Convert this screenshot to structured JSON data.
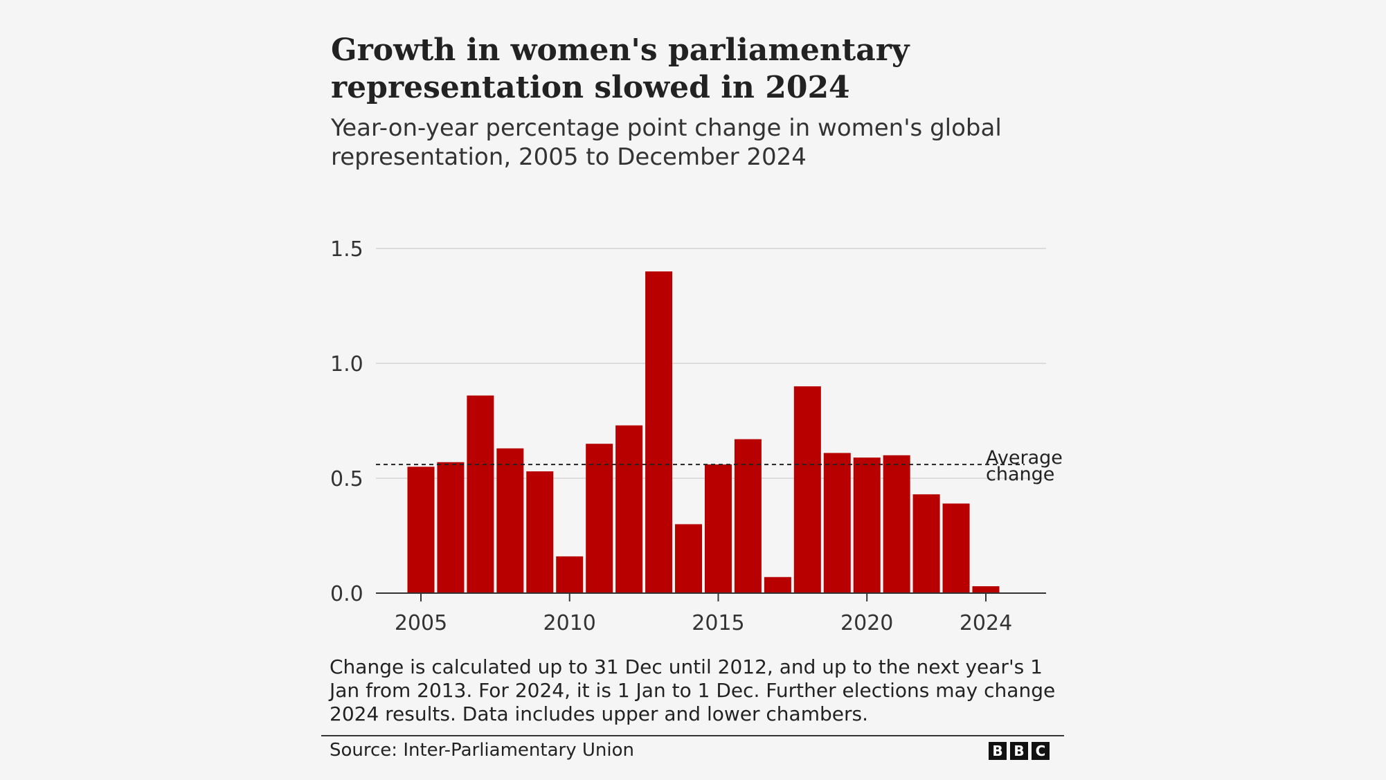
{
  "title": "Growth in women's parliamentary representation slowed in 2024",
  "subtitle": "Year-on-year percentage point change in women's global representation, 2005 to December 2024",
  "note": "Change is calculated up to 31 Dec until 2012, and up to the next year's 1 Jan from 2013. For 2024, it is 1 Jan to 1 Dec. Further elections may change 2024 results. Data includes upper and lower chambers.",
  "source": "Source: Inter-Parliamentary Union",
  "logo": [
    "B",
    "B",
    "C"
  ],
  "colors": {
    "bar": "#b80000",
    "background": "#f5f5f5",
    "grid": "#dcdcdc"
  },
  "chart_data": {
    "type": "bar",
    "categories": [
      2005,
      2006,
      2007,
      2008,
      2009,
      2010,
      2011,
      2012,
      2013,
      2014,
      2015,
      2016,
      2017,
      2018,
      2019,
      2020,
      2021,
      2022,
      2023,
      2024
    ],
    "values": [
      0.55,
      0.57,
      0.86,
      0.63,
      0.53,
      0.16,
      0.65,
      0.73,
      1.4,
      0.3,
      0.56,
      0.67,
      0.07,
      0.9,
      0.61,
      0.59,
      0.6,
      0.43,
      0.39,
      0.03
    ],
    "ylim": [
      0,
      1.5
    ],
    "yticks": [
      "0.0",
      "0.5",
      "1.0",
      "1.5"
    ],
    "xticks": [
      2005,
      2010,
      2015,
      2020,
      2024
    ],
    "grid": true,
    "reference_line": {
      "label_line1": "Average",
      "label_line2": "change",
      "value": 0.56,
      "style": "dashed"
    }
  }
}
